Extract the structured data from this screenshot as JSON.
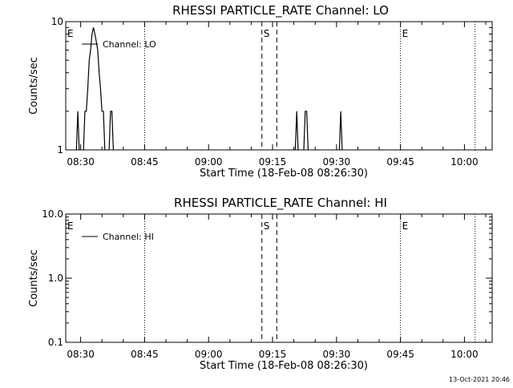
{
  "footer": {
    "timestamp": "13-Oct-2021 20:46"
  },
  "chart_data": [
    {
      "type": "line",
      "title": "RHESSI PARTICLE_RATE Channel: LO",
      "xlabel": "Start Time (18-Feb-08 08:26:30)",
      "ylabel": "Counts/sec",
      "yscale": "log",
      "xlim": [
        "08:26:30",
        "10:06:30"
      ],
      "ylim": [
        1,
        10
      ],
      "xticks": [
        "08:30",
        "08:45",
        "09:00",
        "09:15",
        "09:30",
        "09:45",
        "10:00"
      ],
      "yticks": [
        "1",
        "10"
      ],
      "legend": {
        "label": "Channel: LO",
        "position": "top-left"
      },
      "markers": [
        {
          "label": "E",
          "time": "08:26:30",
          "style": "none"
        },
        {
          "label": "",
          "time": "08:45:00",
          "style": "dotted"
        },
        {
          "label": "S",
          "time": "09:12:30",
          "style": "dashed"
        },
        {
          "label": "",
          "time": "09:16:00",
          "style": "dashed"
        },
        {
          "label": "E",
          "time": "09:45:00",
          "style": "dotted"
        },
        {
          "label": "",
          "time": "10:02:30",
          "style": "dotted"
        }
      ],
      "series": [
        {
          "name": "Channel: LO",
          "segments": [
            [
              [
                "08:29:00",
                1
              ],
              [
                "08:29:20",
                2
              ],
              [
                "08:29:40",
                1
              ]
            ],
            [
              [
                "08:30:40",
                1
              ],
              [
                "08:31:00",
                2
              ],
              [
                "08:31:20",
                2
              ],
              [
                "08:31:40",
                3
              ],
              [
                "08:32:00",
                5
              ],
              [
                "08:32:20",
                6
              ],
              [
                "08:32:40",
                8
              ],
              [
                "08:33:00",
                9
              ],
              [
                "08:33:20",
                8
              ],
              [
                "08:33:40",
                7
              ],
              [
                "08:34:00",
                6
              ],
              [
                "08:34:20",
                4
              ],
              [
                "08:34:40",
                3
              ],
              [
                "08:35:00",
                2
              ],
              [
                "08:35:20",
                2
              ],
              [
                "08:35:40",
                1
              ]
            ],
            [
              [
                "08:36:40",
                1
              ],
              [
                "08:37:00",
                2
              ],
              [
                "08:37:20",
                2
              ],
              [
                "08:37:40",
                1
              ]
            ],
            [
              [
                "09:20:20",
                1
              ],
              [
                "09:20:40",
                2
              ],
              [
                "09:21:00",
                1
              ]
            ],
            [
              [
                "09:22:20",
                1
              ],
              [
                "09:22:40",
                2
              ],
              [
                "09:23:00",
                2
              ],
              [
                "09:23:20",
                1
              ]
            ],
            [
              [
                "09:30:40",
                1
              ],
              [
                "09:31:00",
                2
              ],
              [
                "09:31:20",
                1
              ]
            ]
          ]
        }
      ]
    },
    {
      "type": "line",
      "title": "RHESSI PARTICLE_RATE Channel: HI",
      "xlabel": "Start Time (18-Feb-08 08:26:30)",
      "ylabel": "Counts/sec",
      "yscale": "log",
      "xlim": [
        "08:26:30",
        "10:06:30"
      ],
      "ylim": [
        0.1,
        10
      ],
      "xticks": [
        "08:30",
        "08:45",
        "09:00",
        "09:15",
        "09:30",
        "09:45",
        "10:00"
      ],
      "yticks": [
        "0.1",
        "1.0",
        "10.0"
      ],
      "legend": {
        "label": "Channel: HI",
        "position": "top-left"
      },
      "markers": [
        {
          "label": "E",
          "time": "08:26:30",
          "style": "none"
        },
        {
          "label": "",
          "time": "08:45:00",
          "style": "dotted"
        },
        {
          "label": "S",
          "time": "09:12:30",
          "style": "dashed"
        },
        {
          "label": "",
          "time": "09:16:00",
          "style": "dashed"
        },
        {
          "label": "E",
          "time": "09:45:00",
          "style": "dotted"
        },
        {
          "label": "",
          "time": "10:02:30",
          "style": "dotted"
        }
      ],
      "series": [
        {
          "name": "Channel: HI",
          "segments": []
        }
      ]
    }
  ]
}
